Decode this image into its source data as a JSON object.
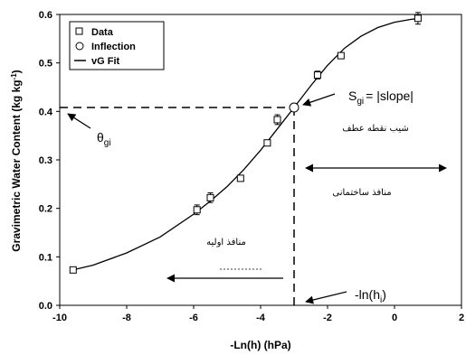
{
  "chart_data": {
    "type": "scatter",
    "title": "",
    "xlabel": "-Ln(h) (hPa)",
    "ylabel": "Gravimetric Water Content (kg kg",
    "ylabel_sup": "-1",
    "ylabel_close": ")",
    "xlim": [
      -10,
      2
    ],
    "ylim": [
      0.0,
      0.6
    ],
    "x_ticks": [
      -10,
      -8,
      -6,
      -4,
      -2,
      0,
      2
    ],
    "x_tick_labels": [
      "-10",
      "-8",
      "-6",
      "-4",
      "-2",
      "0",
      "2"
    ],
    "y_ticks": [
      0.0,
      0.1,
      0.2,
      0.3,
      0.4,
      0.5,
      0.6
    ],
    "y_tick_labels": [
      "0.0",
      "0.1",
      "0.2",
      "0.3",
      "0.4",
      "0.5",
      "0.6"
    ],
    "grid": false,
    "legend_position": "top-left",
    "legend": [
      {
        "label": "Data",
        "marker": "square"
      },
      {
        "label": "Inflection",
        "marker": "circle"
      },
      {
        "label": "vG Fit",
        "marker": "line"
      }
    ],
    "series": [
      {
        "name": "Data",
        "marker": "square",
        "x": [
          -9.6,
          -5.9,
          -5.5,
          -4.6,
          -3.8,
          -3.5,
          -2.3,
          -1.6,
          0.7
        ],
        "y": [
          0.073,
          0.197,
          0.222,
          0.262,
          0.335,
          0.383,
          0.475,
          0.515,
          0.592
        ],
        "err": [
          0.0,
          0.01,
          0.01,
          0.0,
          0.0,
          0.01,
          0.008,
          0.0,
          0.012
        ]
      },
      {
        "name": "Inflection",
        "marker": "circle",
        "x": [
          -3.0
        ],
        "y": [
          0.408
        ]
      },
      {
        "name": "vG Fit",
        "marker": "line",
        "x": [
          -9.6,
          -9.0,
          -8.0,
          -7.0,
          -6.0,
          -5.5,
          -5.0,
          -4.5,
          -4.0,
          -3.5,
          -3.0,
          -2.5,
          -2.0,
          -1.5,
          -1.0,
          -0.5,
          0.0,
          0.5,
          0.7
        ],
        "y": [
          0.073,
          0.083,
          0.108,
          0.141,
          0.188,
          0.215,
          0.245,
          0.28,
          0.32,
          0.364,
          0.408,
          0.453,
          0.495,
          0.53,
          0.555,
          0.573,
          0.584,
          0.59,
          0.591
        ]
      }
    ],
    "annotations": {
      "slope_lhs": "S",
      "slope_lhs_sub": "gi",
      "slope_rhs": "= |slope|",
      "theta": "θ",
      "theta_sub": "gi",
      "ln_h": "-ln(h",
      "ln_h_sub": "i",
      "ln_h_close": ")",
      "persian_inflection_slope": "شیب نقطه عطف",
      "persian_structural_pores": "منافذ ساختمانی",
      "persian_primary_pores": "منافذ اولیه"
    },
    "reference_point": {
      "x": -3.0,
      "y": 0.408
    }
  }
}
